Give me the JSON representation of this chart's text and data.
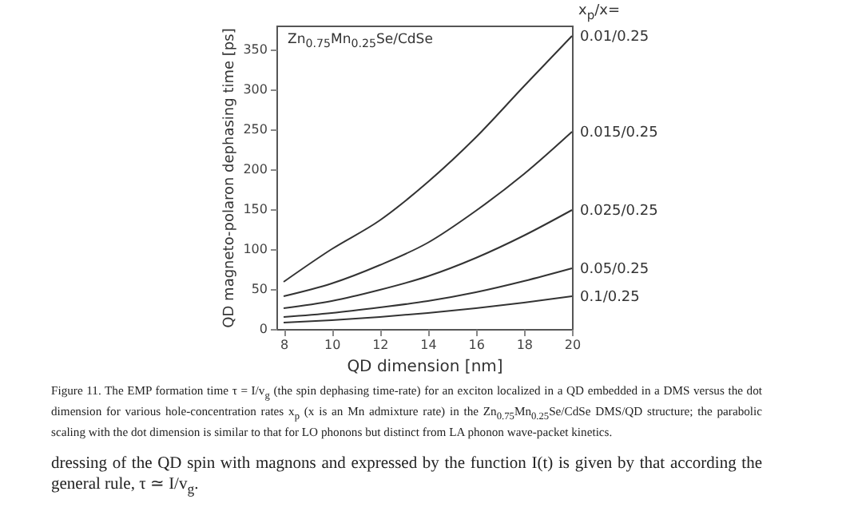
{
  "chart_data": {
    "type": "line",
    "xlabel": "QD dimension  [nm]",
    "ylabel": "QD magneto-polaron dephasing time  [ps]",
    "legend_title": "x$_{p}$/x=",
    "x": [
      8,
      10,
      12,
      14,
      16,
      18,
      20
    ],
    "series": [
      {
        "name": "0.01/0.25",
        "color": "#333333",
        "values": [
          59,
          100,
          136,
          184,
          240,
          304,
          367
        ]
      },
      {
        "name": "0.015/0.25",
        "color": "#333333",
        "values": [
          41,
          57,
          80,
          108,
          148,
          194,
          247
        ]
      },
      {
        "name": "0.025/0.25",
        "color": "#333333",
        "values": [
          26,
          35,
          49,
          66,
          89,
          117,
          149
        ]
      },
      {
        "name": "0.05/0.25",
        "color": "#333333",
        "values": [
          15,
          20,
          27,
          35,
          46,
          60,
          76
        ]
      },
      {
        "name": "0.1/0.25",
        "color": "#333333",
        "values": [
          8,
          11,
          15,
          20,
          26,
          33,
          41
        ]
      }
    ],
    "xlim": [
      7.7,
      20
    ],
    "xticks": [
      8,
      10,
      12,
      14,
      16,
      18,
      20
    ],
    "ylim": [
      0,
      380
    ],
    "yticks": [
      0,
      50,
      100,
      150,
      200,
      250,
      300,
      350
    ],
    "grid": false,
    "marker": "none",
    "line_style": "solid",
    "annotations": [
      "Zn$_{0.75}$Mn$_{0.25}$Se/CdSe",
      "Figure 11.   The EMP formation time τ = I/v$_{g}$ (the spin dephasing time-rate) for an exciton localized in a QD embedded in a DMS versus the dot dimension for various hole-concentration rates x$_{p}$ (x is an Mn admixture rate) in the Zn$_{0.75}$Mn$_{0.25}$Se/CdSe DMS/QD structure; the parabolic scaling with the dot dimension is similar to that for LO phonons but distinct from LA phonon wave-packet kinetics.",
      "dressing of the QD spin with magnons and expressed by the function I(t) is given by that according the general rule, τ ≃ I/v$_{g}$."
    ]
  }
}
